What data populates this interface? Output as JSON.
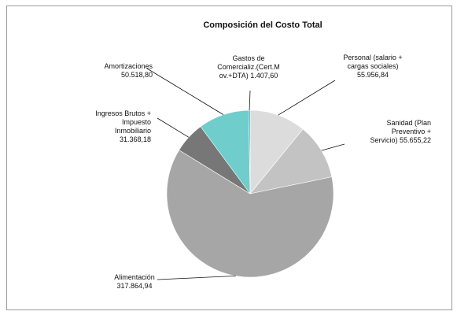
{
  "chart_data": {
    "type": "pie",
    "title": "Composición del Costo Total",
    "slices": [
      {
        "label_lines": [
          "Personal (salario +",
          "cargas sociales)",
          "55.956,84"
        ],
        "value": 55956.84,
        "color": "#dcdcdc"
      },
      {
        "label_lines": [
          "Sanidad (Plan",
          "Preventivo +",
          "Servicio) 55.655,22"
        ],
        "value": 55655.22,
        "color": "#c3c3c3"
      },
      {
        "label_lines": [
          "Alimentación",
          "317.864,94"
        ],
        "value": 317864.94,
        "color": "#a6a6a6"
      },
      {
        "label_lines": [
          "Ingresos Brutos +",
          "Impuesto",
          "Inmobiliario",
          "31.368,18"
        ],
        "value": 31368.18,
        "color": "#777777"
      },
      {
        "label_lines": [
          "Amortizaciones",
          "50.518,80"
        ],
        "value": 50518.8,
        "color": "#6fcdcb"
      },
      {
        "label_lines": [
          "Gastos de",
          "Comercializ.(Cert.M",
          "ov.+DTA) 1.407,60"
        ],
        "value": 1407.6,
        "color": "#1ba8b5"
      }
    ]
  }
}
